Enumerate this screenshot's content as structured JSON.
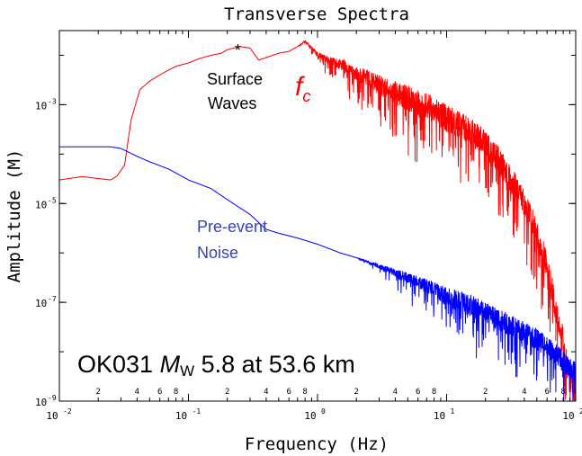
{
  "chart_data": {
    "type": "line",
    "title": "Transverse Spectra",
    "xlabel": "Frequency (Hz)",
    "ylabel": "Amplitude (M)",
    "xscale": "log",
    "yscale": "log",
    "xlim": [
      0.01,
      100
    ],
    "ylim": [
      1e-09,
      0.0316
    ],
    "grid": false,
    "legend": "none",
    "x_major_ticks": [
      {
        "value": 0.01,
        "base": "10",
        "exp": "-2"
      },
      {
        "value": 0.1,
        "base": "10",
        "exp": "-1"
      },
      {
        "value": 1,
        "base": "10",
        "exp": "0"
      },
      {
        "value": 10,
        "base": "10",
        "exp": "1"
      },
      {
        "value": 100,
        "base": "10",
        "exp": "2"
      }
    ],
    "x_minor_labels": [
      "2",
      "4",
      "6",
      "8"
    ],
    "y_major_ticks": [
      {
        "value": 0.001,
        "base": "10",
        "exp": "-3"
      },
      {
        "value": 1e-05,
        "base": "10",
        "exp": "-5"
      },
      {
        "value": 1e-07,
        "base": "10",
        "exp": "-7"
      },
      {
        "value": 1e-09,
        "base": "10",
        "exp": "-9"
      }
    ],
    "series": [
      {
        "color": "#ff0000",
        "x": [
          0.01,
          0.015,
          0.02,
          0.025,
          0.028,
          0.032,
          0.036,
          0.042,
          0.05,
          0.06,
          0.07,
          0.08,
          0.1,
          0.12,
          0.15,
          0.18,
          0.2,
          0.25,
          0.3,
          0.35,
          0.4,
          0.5,
          0.6,
          0.7,
          0.8,
          1,
          1.3,
          1.6,
          2,
          2.5,
          3,
          4,
          5,
          6,
          8,
          10,
          13,
          16,
          20,
          25,
          30,
          40,
          50,
          60,
          70,
          80,
          90,
          100
        ],
        "y": [
          3e-05,
          3.5e-05,
          3.2e-05,
          3e-05,
          3.6e-05,
          6e-05,
          0.0005,
          0.002,
          0.003,
          0.004,
          0.005,
          0.006,
          0.007,
          0.0085,
          0.01,
          0.011,
          0.013,
          0.015,
          0.014,
          0.008,
          0.009,
          0.011,
          0.012,
          0.015,
          0.02,
          0.012,
          0.009,
          0.008,
          0.006,
          0.005,
          0.004,
          0.003,
          0.0025,
          0.002,
          0.0015,
          0.001,
          0.0007,
          0.0005,
          0.0003,
          0.00015,
          7e-05,
          2e-05,
          5e-06,
          1e-06,
          1.5e-07,
          3e-08,
          5e-09,
          3e-09
        ]
      },
      {
        "color": "#0000ff",
        "x": [
          0.01,
          0.015,
          0.02,
          0.025,
          0.03,
          0.04,
          0.05,
          0.07,
          0.1,
          0.15,
          0.2,
          0.3,
          0.4,
          0.5,
          0.7,
          1,
          1.5,
          2,
          3,
          5,
          7,
          10,
          15,
          20,
          30,
          40,
          50,
          60,
          70,
          80,
          90,
          100
        ],
        "y": [
          0.00014,
          0.00014,
          0.00014,
          0.00014,
          0.00013,
          9e-05,
          7e-05,
          5e-05,
          3e-05,
          2e-05,
          1.2e-05,
          6e-06,
          3e-06,
          2.5e-06,
          2e-06,
          1.5e-06,
          1e-06,
          8e-07,
          6e-07,
          4e-07,
          3e-07,
          2e-07,
          1.5e-07,
          1e-07,
          6e-08,
          4e-08,
          3e-08,
          2e-08,
          1.5e-08,
          1e-08,
          8e-09,
          6e-09
        ]
      }
    ],
    "annotations": {
      "star": "*",
      "surface_line1": "Surface",
      "surface_line2": "Waves",
      "fc_main": "f",
      "fc_sub": "c",
      "noise_line1": "Pre-event",
      "noise_line2": "Noise",
      "event_id": "OK031",
      "event_m": "M",
      "event_w": "W",
      "event_rest": "5.8 at 53.6 km"
    }
  }
}
